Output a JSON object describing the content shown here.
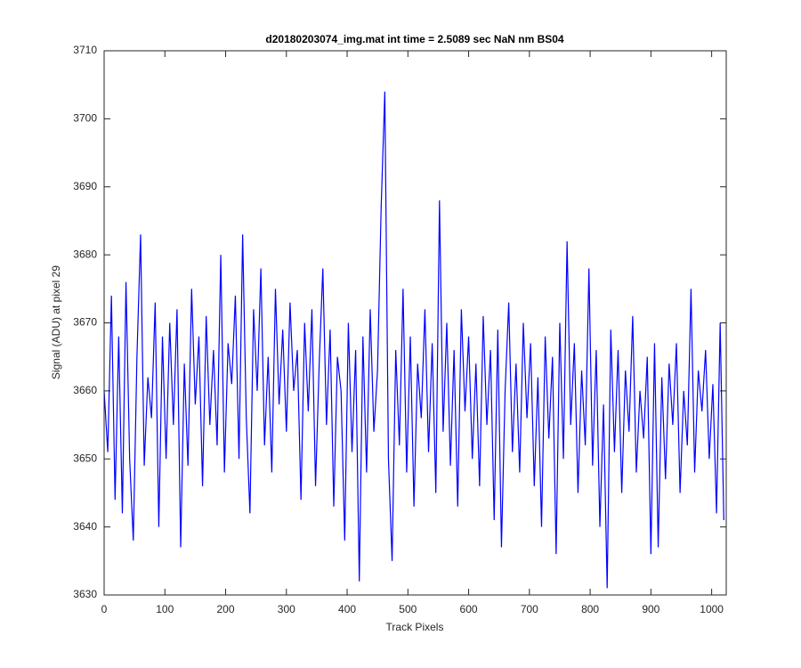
{
  "chart_data": {
    "type": "line",
    "title": "d20180203074_img.mat int time = 2.5089 sec  NaN nm BS04",
    "xlabel": "Track Pixels",
    "ylabel": "Signal (ADU) at pixel 29",
    "xlim": [
      0,
      1024
    ],
    "ylim": [
      3630,
      3710
    ],
    "xticks": [
      0,
      100,
      200,
      300,
      400,
      500,
      600,
      700,
      800,
      900,
      1000
    ],
    "yticks": [
      3630,
      3640,
      3650,
      3660,
      3670,
      3680,
      3690,
      3700,
      3710
    ],
    "grid": false,
    "series": [
      {
        "color": "#0000ff",
        "x": [
          0,
          6,
          12,
          18,
          24,
          30,
          36,
          42,
          48,
          54,
          60,
          66,
          72,
          78,
          84,
          90,
          96,
          102,
          108,
          114,
          120,
          126,
          132,
          138,
          144,
          150,
          156,
          162,
          168,
          174,
          180,
          186,
          192,
          198,
          204,
          210,
          216,
          222,
          228,
          234,
          240,
          246,
          252,
          258,
          264,
          270,
          276,
          282,
          288,
          294,
          300,
          306,
          312,
          318,
          324,
          330,
          336,
          342,
          348,
          354,
          360,
          366,
          372,
          378,
          384,
          390,
          396,
          402,
          408,
          414,
          420,
          426,
          432,
          438,
          444,
          450,
          456,
          462,
          468,
          474,
          480,
          486,
          492,
          498,
          504,
          510,
          516,
          522,
          528,
          534,
          540,
          546,
          552,
          558,
          564,
          570,
          576,
          582,
          588,
          594,
          600,
          606,
          612,
          618,
          624,
          630,
          636,
          642,
          648,
          654,
          660,
          666,
          672,
          678,
          684,
          690,
          696,
          702,
          708,
          714,
          720,
          726,
          732,
          738,
          744,
          750,
          756,
          762,
          768,
          774,
          780,
          786,
          792,
          798,
          804,
          810,
          816,
          822,
          828,
          834,
          840,
          846,
          852,
          858,
          864,
          870,
          876,
          882,
          888,
          894,
          900,
          906,
          912,
          918,
          924,
          930,
          936,
          942,
          948,
          954,
          960,
          966,
          972,
          978,
          984,
          990,
          996,
          1002,
          1008,
          1014,
          1020
        ],
        "values": [
          3660,
          3651,
          3674,
          3644,
          3668,
          3642,
          3676,
          3650,
          3638,
          3665,
          3683,
          3649,
          3662,
          3656,
          3673,
          3640,
          3668,
          3650,
          3670,
          3655,
          3672,
          3637,
          3664,
          3649,
          3675,
          3658,
          3668,
          3646,
          3671,
          3655,
          3666,
          3652,
          3680,
          3648,
          3667,
          3661,
          3674,
          3650,
          3683,
          3656,
          3642,
          3672,
          3660,
          3678,
          3652,
          3665,
          3648,
          3675,
          3658,
          3669,
          3654,
          3673,
          3660,
          3666,
          3644,
          3670,
          3657,
          3672,
          3646,
          3664,
          3678,
          3655,
          3669,
          3643,
          3665,
          3660,
          3638,
          3670,
          3651,
          3666,
          3632,
          3668,
          3648,
          3672,
          3654,
          3663,
          3687,
          3704,
          3650,
          3635,
          3666,
          3652,
          3675,
          3648,
          3668,
          3643,
          3664,
          3656,
          3672,
          3651,
          3667,
          3645,
          3688,
          3654,
          3670,
          3649,
          3666,
          3643,
          3672,
          3657,
          3668,
          3650,
          3664,
          3646,
          3671,
          3655,
          3666,
          3641,
          3669,
          3637,
          3660,
          3673,
          3651,
          3664,
          3648,
          3670,
          3656,
          3667,
          3646,
          3662,
          3640,
          3668,
          3653,
          3665,
          3636,
          3670,
          3650,
          3682,
          3655,
          3667,
          3645,
          3663,
          3652,
          3678,
          3649,
          3666,
          3640,
          3658,
          3631,
          3669,
          3651,
          3666,
          3645,
          3663,
          3654,
          3671,
          3648,
          3660,
          3653,
          3665,
          3636,
          3667,
          3637,
          3662,
          3647,
          3664,
          3655,
          3667,
          3645,
          3660,
          3652,
          3675,
          3648,
          3663,
          3657,
          3666,
          3650,
          3661,
          3642,
          3670,
          3641
        ]
      }
    ]
  }
}
